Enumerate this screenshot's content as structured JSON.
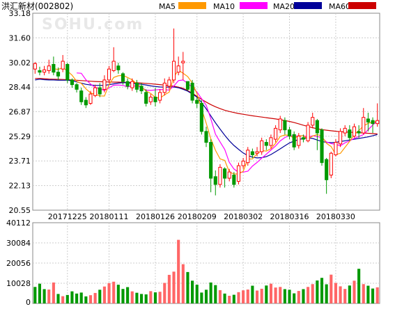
{
  "chart_data": [
    {
      "type": "candlestick",
      "title": "洪汇新材(002802)",
      "watermark": "SOHU.com",
      "legend": [
        {
          "label": "MA5",
          "color": "#ff9900"
        },
        {
          "label": "MA10",
          "color": "#ff00ff"
        },
        {
          "label": "MA20",
          "color": "#000099"
        },
        {
          "label": "MA60",
          "color": "#cc0000"
        }
      ],
      "up_color": "#ff0000",
      "down_color": "#009900",
      "ylim": [
        20.55,
        33.18
      ],
      "y_ticks": [
        "33.18",
        "31.60",
        "30.02",
        "28.44",
        "26.87",
        "25.29",
        "23.71",
        "22.13",
        "20.55"
      ],
      "x_ticks": [
        {
          "index": 7,
          "label": "20171225"
        },
        {
          "index": 16,
          "label": "20180111"
        },
        {
          "index": 26,
          "label": "20180126"
        },
        {
          "index": 35,
          "label": "20180209"
        },
        {
          "index": 45,
          "label": "20180302"
        },
        {
          "index": 55,
          "label": "20180316"
        },
        {
          "index": 65,
          "label": "20180330"
        }
      ],
      "candles": [
        [
          29.6,
          29.95,
          29.3,
          30.05
        ],
        [
          29.5,
          29.4,
          29.2,
          29.75
        ],
        [
          29.4,
          29.55,
          29.2,
          29.8
        ],
        [
          29.5,
          29.8,
          29.3,
          30.2
        ],
        [
          29.9,
          29.4,
          29.2,
          30.4
        ],
        [
          29.4,
          29.15,
          28.9,
          29.7
        ],
        [
          29.6,
          30.1,
          29.4,
          30.5
        ],
        [
          29.9,
          28.9,
          28.7,
          30.0
        ],
        [
          28.9,
          28.6,
          28.4,
          29.0
        ],
        [
          28.6,
          28.3,
          28.1,
          28.7
        ],
        [
          28.2,
          27.5,
          27.3,
          28.4
        ],
        [
          27.6,
          27.3,
          27.1,
          27.8
        ],
        [
          27.4,
          28.0,
          27.3,
          28.2
        ],
        [
          27.9,
          28.4,
          27.8,
          28.6
        ],
        [
          28.4,
          28.0,
          27.8,
          28.7
        ],
        [
          28.3,
          28.9,
          28.1,
          29.2
        ],
        [
          28.9,
          29.6,
          28.7,
          29.8
        ],
        [
          29.5,
          30.1,
          29.4,
          31.0
        ],
        [
          29.8,
          29.55,
          29.3,
          30.0
        ],
        [
          29.3,
          28.8,
          28.6,
          29.4
        ],
        [
          28.8,
          28.5,
          28.3,
          29.0
        ],
        [
          28.4,
          28.8,
          28.2,
          29.0
        ],
        [
          28.7,
          28.3,
          28.1,
          28.9
        ],
        [
          28.5,
          28.2,
          28.0,
          28.7
        ],
        [
          28.1,
          27.4,
          27.2,
          28.3
        ],
        [
          27.5,
          27.8,
          27.3,
          28.0
        ],
        [
          27.8,
          27.5,
          27.2,
          28.4
        ],
        [
          27.6,
          28.1,
          27.4,
          28.3
        ],
        [
          28.1,
          28.7,
          27.9,
          29.0
        ],
        [
          28.5,
          28.9,
          28.3,
          29.1
        ],
        [
          28.9,
          30.1,
          28.7,
          32.2
        ],
        [
          29.4,
          29.8,
          29.2,
          30.4
        ],
        [
          30.0,
          30.1,
          28.9,
          30.7
        ],
        [
          28.8,
          28.3,
          28.2,
          28.7
        ],
        [
          28.7,
          27.6,
          27.4,
          28.9
        ],
        [
          27.6,
          27.4,
          27.1,
          27.8
        ],
        [
          27.4,
          25.6,
          25.4,
          27.6
        ],
        [
          25.6,
          24.9,
          24.6,
          25.9
        ],
        [
          24.9,
          22.6,
          21.7,
          25.1
        ],
        [
          22.7,
          22.2,
          21.5,
          23.1
        ],
        [
          22.2,
          23.3,
          22.0,
          23.5
        ],
        [
          23.2,
          22.6,
          22.0,
          23.3
        ],
        [
          22.6,
          23.0,
          22.4,
          23.2
        ],
        [
          22.8,
          22.2,
          22.0,
          23.0
        ],
        [
          22.4,
          23.4,
          22.2,
          23.6
        ],
        [
          23.4,
          23.7,
          23.2,
          23.9
        ],
        [
          23.6,
          24.4,
          23.4,
          24.6
        ],
        [
          24.3,
          24.1,
          23.9,
          24.5
        ],
        [
          24.2,
          24.3,
          24.0,
          24.6
        ],
        [
          24.3,
          25.0,
          24.1,
          25.2
        ],
        [
          24.9,
          24.7,
          24.4,
          25.1
        ],
        [
          24.7,
          25.2,
          24.5,
          25.4
        ],
        [
          25.1,
          25.8,
          24.9,
          26.0
        ],
        [
          25.7,
          26.4,
          25.5,
          26.6
        ],
        [
          26.3,
          25.7,
          25.4,
          26.5
        ],
        [
          25.7,
          25.3,
          25.1,
          25.9
        ],
        [
          25.4,
          24.6,
          24.4,
          25.6
        ],
        [
          24.7,
          25.3,
          24.5,
          25.5
        ],
        [
          25.2,
          25.1,
          24.9,
          25.4
        ],
        [
          25.0,
          26.0,
          24.9,
          26.2
        ],
        [
          26.0,
          26.5,
          25.8,
          26.8
        ],
        [
          26.3,
          25.5,
          24.4,
          26.4
        ],
        [
          25.7,
          23.6,
          23.4,
          25.8
        ],
        [
          23.8,
          22.5,
          21.6,
          23.9
        ],
        [
          22.8,
          24.2,
          22.6,
          24.3
        ],
        [
          24.1,
          24.9,
          24.0,
          25.1
        ],
        [
          24.8,
          25.6,
          24.6,
          25.8
        ],
        [
          25.5,
          25.8,
          25.3,
          26.0
        ],
        [
          25.7,
          25.2,
          25.0,
          26.0
        ],
        [
          25.3,
          25.9,
          25.2,
          26.1
        ],
        [
          25.6,
          25.5,
          25.2,
          26.0
        ],
        [
          25.5,
          26.5,
          25.4,
          27.1
        ],
        [
          26.4,
          26.2,
          25.6,
          26.8
        ],
        [
          26.3,
          26.1,
          25.5,
          26.5
        ],
        [
          26.1,
          26.3,
          25.9,
          27.4
        ]
      ],
      "ma": {
        "MA5": [
          null,
          null,
          null,
          null,
          29.62,
          29.58,
          29.69,
          29.47,
          29.21,
          28.81,
          28.68,
          28.33,
          28.07,
          27.98,
          27.88,
          27.87,
          28.6,
          29.06,
          29.17,
          29.2,
          29.06,
          28.91,
          28.64,
          28.45,
          28.19,
          28.04,
          27.78,
          27.73,
          27.95,
          28.12,
          29.1,
          29.53,
          29.33,
          29.12,
          28.7,
          28.02,
          27.03,
          26.13,
          25.13,
          24.39,
          23.84,
          23.74,
          23.0,
          22.87,
          22.88,
          23.04,
          23.82,
          23.84,
          24.17,
          24.37,
          24.34,
          24.5,
          24.84,
          25.28,
          25.37,
          25.35,
          25.15,
          25.32,
          25.32,
          25.11,
          25.3,
          25.4,
          25.3,
          24.84,
          24.63,
          24.12,
          24.19,
          24.58,
          24.96,
          25.39,
          25.66,
          25.95,
          26.12,
          26.2,
          26.24
        ],
        "MA10": [
          null,
          null,
          null,
          null,
          null,
          null,
          null,
          null,
          null,
          29.35,
          29.33,
          28.91,
          28.64,
          28.42,
          28.34,
          28.22,
          28.4,
          28.56,
          28.58,
          28.55,
          28.46,
          28.51,
          28.52,
          28.42,
          28.25,
          28.23,
          28.26,
          28.29,
          28.28,
          28.25,
          28.51,
          28.86,
          28.9,
          28.68,
          28.43,
          28.13,
          27.7,
          27.28,
          26.41,
          25.42,
          24.93,
          24.44,
          23.61,
          23.19,
          22.98,
          22.99,
          23.05,
          23.38,
          23.61,
          23.89,
          24.14,
          24.41,
          24.67,
          24.99,
          25.21,
          25.34,
          25.3,
          25.31,
          25.33,
          25.23,
          25.32,
          25.27,
          25.2,
          24.93,
          24.82,
          24.77,
          24.68,
          24.87,
          24.99,
          25.16,
          25.27,
          25.4,
          25.71,
          26.01,
          26.28
        ],
        "MA20": [
          28.9,
          28.95,
          28.92,
          28.9,
          28.9,
          28.88,
          28.88,
          28.88,
          28.85,
          28.78,
          28.7,
          28.62,
          28.58,
          28.55,
          28.55,
          28.55,
          28.6,
          28.65,
          28.7,
          28.72,
          28.72,
          28.68,
          28.65,
          28.62,
          28.58,
          28.52,
          28.48,
          28.45,
          28.44,
          28.44,
          28.45,
          28.4,
          28.3,
          28.18,
          28.0,
          27.8,
          27.45,
          27.05,
          26.6,
          26.15,
          25.75,
          25.35,
          25.0,
          24.7,
          24.45,
          24.22,
          24.05,
          23.95,
          23.9,
          23.92,
          23.98,
          24.12,
          24.3,
          24.48,
          24.68,
          24.86,
          24.98,
          25.08,
          25.15,
          25.18,
          25.15,
          25.05,
          24.95,
          24.9,
          24.88,
          24.9,
          24.95,
          25.0,
          25.05,
          25.1,
          25.15,
          25.2,
          25.25,
          25.32,
          25.4
        ],
        "MA60": [
          29.0,
          29.0,
          28.98,
          28.96,
          28.95,
          28.94,
          28.93,
          28.92,
          28.9,
          28.88,
          28.86,
          28.84,
          28.82,
          28.8,
          28.79,
          28.78,
          28.77,
          28.76,
          28.76,
          28.75,
          28.74,
          28.73,
          28.72,
          28.7,
          28.68,
          28.66,
          28.63,
          28.6,
          28.57,
          28.54,
          28.5,
          28.44,
          28.36,
          28.22,
          28.05,
          27.85,
          27.65,
          27.48,
          27.32,
          27.18,
          27.06,
          26.96,
          26.88,
          26.81,
          26.75,
          26.7,
          26.65,
          26.6,
          26.56,
          26.52,
          26.48,
          26.44,
          26.4,
          26.35,
          26.3,
          26.24,
          26.17,
          26.09,
          26.0,
          25.92,
          25.84,
          25.77,
          25.72,
          25.68,
          25.64,
          25.61,
          25.58,
          25.57,
          25.55,
          25.54,
          25.52,
          25.5,
          25.48,
          25.46,
          25.44
        ]
      }
    },
    {
      "type": "bar",
      "title": "",
      "ylim": [
        0,
        40112
      ],
      "y_ticks": [
        "40112",
        "30084",
        "20056",
        "10028",
        "0"
      ],
      "values": [
        8200,
        9800,
        7100,
        6900,
        10400,
        4700,
        3600,
        4200,
        6000,
        4900,
        5400,
        3500,
        4100,
        5200,
        6800,
        8400,
        10100,
        10800,
        9300,
        7200,
        8100,
        6000,
        5300,
        4700,
        4500,
        6100,
        5500,
        5800,
        10200,
        14200,
        15800,
        31600,
        19500,
        15600,
        11300,
        9300,
        5400,
        6800,
        10400,
        9100,
        6600,
        4900,
        3800,
        4300,
        5600,
        6500,
        6900,
        8800,
        6400,
        7300,
        8900,
        9800,
        7900,
        8200,
        7100,
        6800,
        5000,
        6200,
        7100,
        8200,
        9600,
        11400,
        12700,
        9500,
        14300,
        10200,
        8500,
        7200,
        8900,
        11300,
        17200,
        9600,
        8800,
        7400,
        8000
      ],
      "colors": [
        "d",
        "d",
        "d",
        "u",
        "u",
        "d",
        "u",
        "d",
        "d",
        "d",
        "d",
        "d",
        "u",
        "u",
        "d",
        "u",
        "u",
        "u",
        "d",
        "d",
        "d",
        "u",
        "d",
        "d",
        "d",
        "u",
        "d",
        "u",
        "u",
        "u",
        "u",
        "u",
        "u",
        "d",
        "d",
        "d",
        "d",
        "d",
        "d",
        "d",
        "u",
        "d",
        "u",
        "d",
        "u",
        "u",
        "u",
        "d",
        "u",
        "u",
        "d",
        "u",
        "u",
        "u",
        "d",
        "d",
        "d",
        "u",
        "d",
        "u",
        "u",
        "d",
        "d",
        "d",
        "u",
        "u",
        "u",
        "u",
        "d",
        "u",
        "d",
        "u",
        "d",
        "d",
        "u"
      ]
    }
  ]
}
